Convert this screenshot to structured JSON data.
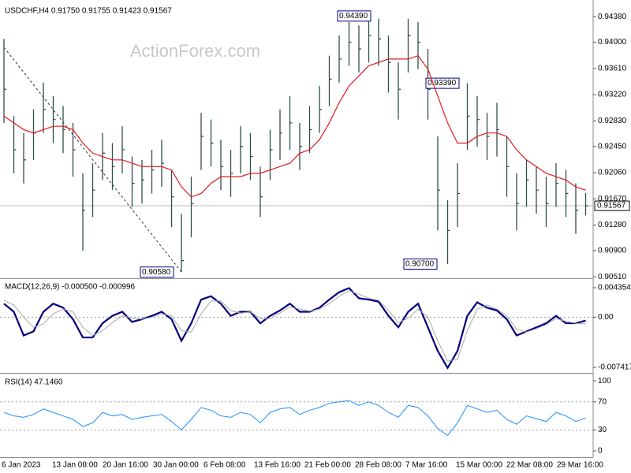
{
  "chart_data": [
    {
      "type": "hlc",
      "title": "USDCHF,H4  0.91750 0.91755 0.91423 0.91567",
      "watermark": "ActionForex.com",
      "color": "#2f4f4f",
      "ylim": [
        0.905,
        0.9457
      ],
      "yticks": [
        {
          "value": 0.9438,
          "label": "0.94380"
        },
        {
          "value": 0.94,
          "label": "0.94000"
        },
        {
          "value": 0.9361,
          "label": "0.93610"
        },
        {
          "value": 0.9322,
          "label": "0.93220"
        },
        {
          "value": 0.9283,
          "label": "0.92830"
        },
        {
          "value": 0.9245,
          "label": "0.92450"
        },
        {
          "value": 0.9206,
          "label": "0.92060"
        },
        {
          "value": 0.9167,
          "label": "0.91670"
        },
        {
          "value": 0.9128,
          "label": "0.91280"
        },
        {
          "value": 0.909,
          "label": "0.90900"
        },
        {
          "value": 0.9051,
          "label": "0.90510"
        }
      ],
      "last": {
        "value": 0.91567,
        "label": "0.91567"
      },
      "annotations": [
        {
          "value": 0.9439,
          "label": "0.94390"
        },
        {
          "value": 0.9058,
          "label": "0.90580"
        },
        {
          "value": 0.907,
          "label": "0.90700"
        },
        {
          "value": 0.9339,
          "label": "0.93390"
        }
      ],
      "close": [
        0.933,
        0.924,
        0.9225,
        0.9265,
        0.93,
        0.9285,
        0.927,
        0.924,
        0.915,
        0.918,
        0.9235,
        0.9215,
        0.924,
        0.919,
        0.9195,
        0.921,
        0.922,
        0.917,
        0.9075,
        0.916,
        0.926,
        0.925,
        0.9215,
        0.9205,
        0.9245,
        0.923,
        0.917,
        0.924,
        0.9265,
        0.928,
        0.9245,
        0.927,
        0.93,
        0.9345,
        0.9375,
        0.94,
        0.939,
        0.941,
        0.9405,
        0.937,
        0.933,
        0.941,
        0.94,
        0.933,
        0.918,
        0.912,
        0.9175,
        0.929,
        0.9285,
        0.926,
        0.927,
        0.9215,
        0.916,
        0.9195,
        0.918,
        0.916,
        0.919,
        0.9175,
        0.915,
        0.91567
      ],
      "high": [
        0.9405,
        0.929,
        0.9265,
        0.93,
        0.934,
        0.932,
        0.9305,
        0.928,
        0.9205,
        0.922,
        0.9265,
        0.925,
        0.9275,
        0.923,
        0.9225,
        0.924,
        0.9255,
        0.921,
        0.9145,
        0.92,
        0.9295,
        0.9285,
        0.9255,
        0.924,
        0.9275,
        0.9265,
        0.9215,
        0.927,
        0.93,
        0.932,
        0.928,
        0.9305,
        0.9335,
        0.938,
        0.941,
        0.943,
        0.9425,
        0.9439,
        0.9435,
        0.941,
        0.937,
        0.9435,
        0.943,
        0.939,
        0.926,
        0.9165,
        0.922,
        0.9339,
        0.932,
        0.9295,
        0.931,
        0.926,
        0.9205,
        0.9225,
        0.9215,
        0.92,
        0.922,
        0.921,
        0.919,
        0.91755
      ],
      "low": [
        0.928,
        0.9205,
        0.919,
        0.9225,
        0.9265,
        0.925,
        0.9235,
        0.92,
        0.909,
        0.914,
        0.9195,
        0.918,
        0.9205,
        0.9155,
        0.916,
        0.9175,
        0.9185,
        0.9125,
        0.9058,
        0.911,
        0.921,
        0.9215,
        0.918,
        0.917,
        0.9205,
        0.9195,
        0.914,
        0.9195,
        0.9225,
        0.924,
        0.921,
        0.9235,
        0.9265,
        0.9305,
        0.934,
        0.9365,
        0.9355,
        0.937,
        0.9365,
        0.9325,
        0.9285,
        0.9355,
        0.936,
        0.9285,
        0.912,
        0.907,
        0.9125,
        0.924,
        0.9245,
        0.9225,
        0.923,
        0.917,
        0.912,
        0.9155,
        0.9145,
        0.9125,
        0.9155,
        0.914,
        0.9115,
        0.91423
      ],
      "series": [
        {
          "name": "MA",
          "color": "#e0191e",
          "values": [
            0.929,
            0.928,
            0.927,
            0.9265,
            0.927,
            0.9275,
            0.9275,
            0.927,
            0.925,
            0.9235,
            0.923,
            0.9225,
            0.9225,
            0.922,
            0.9215,
            0.9215,
            0.9215,
            0.921,
            0.9185,
            0.917,
            0.9175,
            0.919,
            0.92,
            0.92,
            0.92,
            0.9205,
            0.9205,
            0.921,
            0.9215,
            0.922,
            0.9235,
            0.924,
            0.9255,
            0.928,
            0.931,
            0.9335,
            0.935,
            0.9365,
            0.937,
            0.9375,
            0.9375,
            0.9375,
            0.938,
            0.936,
            0.932,
            0.928,
            0.925,
            0.925,
            0.926,
            0.9265,
            0.9265,
            0.926,
            0.924,
            0.9225,
            0.9215,
            0.9205,
            0.92,
            0.9195,
            0.9185,
            0.918
          ]
        }
      ]
    },
    {
      "type": "line",
      "title": "MACD(12,26,9) -0.000500 -0.000996",
      "ylim": [
        -0.00812,
        0.00552
      ],
      "yticks": [
        0.004354,
        {
          "value": 0,
          "label": "0.00"
        },
        -0.007417
      ],
      "levels": [
        0
      ],
      "series": [
        {
          "name": "MACD",
          "color": "#00007f",
          "width": 2.2,
          "values": [
            0.002,
            0.0008,
            -0.0027,
            -0.0021,
            0.0008,
            0.002,
            0.0014,
            -0.0003,
            -0.003,
            -0.003,
            -0.0009,
            0.0002,
            0.0008,
            -0.0007,
            -0.0003,
            0.0002,
            0.0008,
            -0.0003,
            -0.0035,
            -0.0009,
            0.0026,
            0.0031,
            0.002,
            0.0002,
            0.0008,
            0.0008,
            -0.0009,
            0.0002,
            0.001,
            0.002,
            0.0008,
            0.0008,
            0.0014,
            0.0026,
            0.0037,
            0.0043,
            0.0028,
            0.0026,
            0.0023,
            0.0002,
            -0.0015,
            0.0008,
            0.002,
            -0.0015,
            -0.005,
            -0.0075,
            -0.005,
            0.0002,
            0.0022,
            0.0014,
            0.001,
            -0.0003,
            -0.0027,
            -0.0021,
            -0.0015,
            -0.0009,
            0.0002,
            -0.0009,
            -0.0009,
            -0.0005
          ]
        },
        {
          "name": "Signal",
          "color": "#a9a9a9",
          "width": 1,
          "values": [
            0.0025,
            0.0018,
            0,
            -0.0015,
            -0.001,
            0.0005,
            0.0012,
            0.0008,
            -0.0015,
            -0.0027,
            -0.002,
            -0.0008,
            0.0002,
            -0.0001,
            -0.0003,
            0,
            0.0005,
            0.0002,
            -0.002,
            -0.0022,
            0.0005,
            0.0024,
            0.0024,
            0.001,
            0.0006,
            0.0008,
            -0.0002,
            -0.0002,
            0.0006,
            0.0015,
            0.0012,
            0.0009,
            0.0012,
            0.002,
            0.0031,
            0.0039,
            0.0034,
            0.0028,
            0.0025,
            0.001,
            -0.0008,
            -0.0002,
            0.0012,
            0,
            -0.0035,
            -0.0065,
            -0.0062,
            -0.002,
            0.0012,
            0.0018,
            0.0012,
            0.0002,
            -0.0018,
            -0.0022,
            -0.0017,
            -0.0011,
            -0.0002,
            -0.0006,
            -0.0009,
            -0.000996
          ]
        }
      ]
    },
    {
      "type": "line",
      "title": "RSI(14) 47.1460",
      "ylim": [
        -9,
        108
      ],
      "yticks": [
        100,
        70,
        30,
        0
      ],
      "levels": [
        70,
        30
      ],
      "xlabels": [
        "6 Jan 2023",
        "13 Jan 08:00",
        "20 Jan 16:00",
        "30 Jan 00:00",
        "6 Feb 08:00",
        "13 Feb 16:00",
        "21 Feb 00:00",
        "28 Feb 08:00",
        "7 Mar 16:00",
        "15 Mar 00:00",
        "22 Mar 08:00",
        "29 Mar 16:00"
      ],
      "series": [
        {
          "name": "RSI",
          "color": "#1e90ff",
          "width": 1,
          "values": [
            55,
            50,
            48,
            52,
            60,
            55,
            50,
            45,
            35,
            40,
            55,
            50,
            52,
            45,
            48,
            50,
            52,
            42,
            30,
            45,
            62,
            58,
            50,
            48,
            55,
            52,
            40,
            55,
            60,
            62,
            52,
            58,
            62,
            68,
            70,
            72,
            65,
            70,
            65,
            55,
            48,
            65,
            62,
            50,
            32,
            22,
            40,
            65,
            60,
            55,
            58,
            45,
            38,
            50,
            46,
            42,
            55,
            50,
            42,
            47.146
          ]
        }
      ]
    }
  ]
}
